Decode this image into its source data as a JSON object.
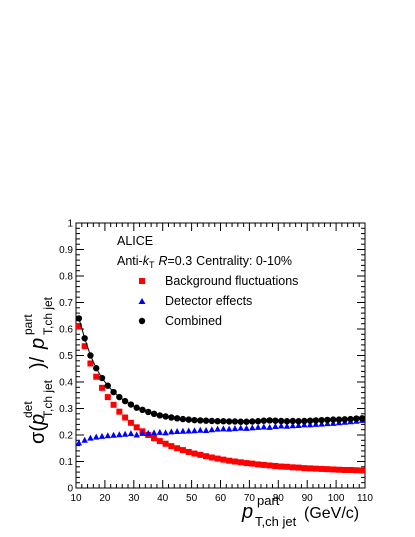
{
  "chart_data": {
    "type": "scatter",
    "title": "",
    "annotations": {
      "collaboration": "ALICE",
      "jet_definition": {
        "algorithm": "Anti-",
        "algorithm_var": "k",
        "algorithm_sub": "T",
        "r_symbol": "R",
        "r_value": "=0.3",
        "centrality": "Centrality: 0-10%"
      }
    },
    "xlabel": {
      "main": "p",
      "sub": "T,ch jet",
      "sup": "part",
      "unit": "(GeV/c)"
    },
    "ylabel": {
      "sigma": "σ(",
      "p1": "p",
      "p1_sup": "det",
      "p1_sub": "T,ch jet",
      "mid": ")/",
      "p2": "p",
      "p2_sup": "part",
      "p2_sub": "T,ch jet"
    },
    "xlim": [
      10,
      110
    ],
    "ylim": [
      0,
      1
    ],
    "xticks": [
      10,
      20,
      30,
      40,
      50,
      60,
      70,
      80,
      90,
      100,
      110
    ],
    "yticks": [
      0,
      0.1,
      0.2,
      0.3,
      0.4,
      0.5,
      0.6,
      0.7,
      0.8,
      0.9,
      1
    ],
    "ytick_labels": [
      "0",
      "0.1",
      "0.2",
      "0.3",
      "0.4",
      "0.5",
      "0.6",
      "0.7",
      "0.8",
      "0.9",
      "1"
    ],
    "legend_position": "top-left",
    "x": [
      11,
      13,
      15,
      17,
      19,
      21,
      23,
      25,
      27,
      29,
      31,
      33,
      35,
      37,
      39,
      41,
      43,
      45,
      47,
      49,
      51,
      53,
      55,
      57,
      59,
      61,
      63,
      65,
      67,
      69,
      71,
      73,
      75,
      77,
      79,
      81,
      83,
      85,
      87,
      89,
      91,
      93,
      95,
      97,
      99,
      101,
      103,
      105,
      107,
      109
    ],
    "series": [
      {
        "name": "Background fluctuations",
        "marker": "square",
        "color": "#ff0000",
        "values": [
          0.61,
          0.535,
          0.47,
          0.42,
          0.378,
          0.343,
          0.314,
          0.288,
          0.266,
          0.246,
          0.229,
          0.214,
          0.2,
          0.188,
          0.177,
          0.167,
          0.158,
          0.15,
          0.143,
          0.136,
          0.13,
          0.125,
          0.12,
          0.115,
          0.111,
          0.107,
          0.103,
          0.1,
          0.097,
          0.094,
          0.092,
          0.089,
          0.087,
          0.085,
          0.083,
          0.081,
          0.08,
          0.078,
          0.077,
          0.075,
          0.074,
          0.073,
          0.072,
          0.071,
          0.07,
          0.069,
          0.068,
          0.068,
          0.067,
          0.066
        ]
      },
      {
        "name": "Detector effects",
        "marker": "triangle",
        "color": "#0000ff",
        "values": [
          0.17,
          0.18,
          0.188,
          0.192,
          0.195,
          0.197,
          0.199,
          0.201,
          0.203,
          0.205,
          0.2,
          0.206,
          0.206,
          0.208,
          0.21,
          0.208,
          0.212,
          0.213,
          0.214,
          0.215,
          0.216,
          0.218,
          0.217,
          0.22,
          0.222,
          0.223,
          0.222,
          0.224,
          0.226,
          0.225,
          0.227,
          0.229,
          0.23,
          0.229,
          0.232,
          0.234,
          0.233,
          0.235,
          0.236,
          0.238,
          0.238,
          0.24,
          0.241,
          0.243,
          0.244,
          0.246,
          0.248,
          0.25,
          0.252,
          0.255
        ]
      },
      {
        "name": "Combined",
        "marker": "circle",
        "color": "#000000",
        "values": [
          0.64,
          0.565,
          0.5,
          0.452,
          0.415,
          0.386,
          0.362,
          0.343,
          0.328,
          0.315,
          0.303,
          0.295,
          0.287,
          0.28,
          0.274,
          0.27,
          0.266,
          0.263,
          0.26,
          0.258,
          0.256,
          0.255,
          0.254,
          0.253,
          0.252,
          0.252,
          0.251,
          0.251,
          0.25,
          0.25,
          0.251,
          0.252,
          0.254,
          0.255,
          0.254,
          0.253,
          0.252,
          0.253,
          0.252,
          0.253,
          0.254,
          0.255,
          0.256,
          0.257,
          0.258,
          0.258,
          0.259,
          0.26,
          0.262,
          0.263
        ]
      }
    ]
  }
}
